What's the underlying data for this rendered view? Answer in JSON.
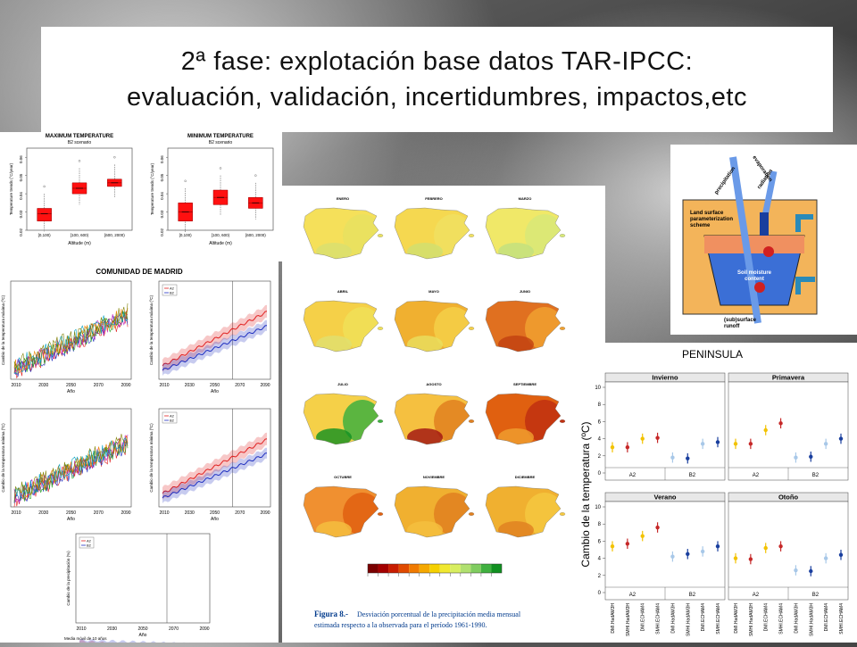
{
  "title": {
    "line1": "2ª fase: explotación base datos TAR-IPCC:",
    "line2": "evaluación, validación, incertidumbres, impactos,etc"
  },
  "boxplots": {
    "panels": [
      {
        "title": "MAXIMUM TEMPERATURE",
        "subtitle": "B2 scenario",
        "ylabel": "Temperature trends (°C/year)",
        "xlabel": "Altitude (m)",
        "categories": [
          "[0,100)",
          "[100, 600)",
          "[600, 2000)"
        ],
        "boxes": [
          {
            "q1": 0.025,
            "median": 0.029,
            "q3": 0.032
          },
          {
            "q1": 0.04,
            "median": 0.043,
            "q3": 0.046
          },
          {
            "q1": 0.044,
            "median": 0.046,
            "q3": 0.048
          }
        ]
      },
      {
        "title": "MINIMUM TEMPERATURE",
        "subtitle": "B2 scenario",
        "ylabel": "Temperature trends (°C/year)",
        "xlabel": "Altitude (m)",
        "categories": [
          "[0,100)",
          "[100, 600)",
          "[600, 2000)"
        ],
        "boxes": [
          {
            "q1": 0.025,
            "median": 0.03,
            "q3": 0.035
          },
          {
            "q1": 0.034,
            "median": 0.038,
            "q3": 0.042
          },
          {
            "q1": 0.032,
            "median": 0.035,
            "q3": 0.038
          }
        ]
      }
    ],
    "y_ticks": [
      "0.02",
      "0.03",
      "0.04",
      "0.05",
      "0.06"
    ]
  },
  "madrid": {
    "title": "COMUNIDAD DE MADRID",
    "ylabel_max": "Cambio de la temperatura máxima (ºC)",
    "ylabel_min": "Cambio de la temperatura mínima (ºC)",
    "ylabel_precip": "Cambio de la precipitación (%)",
    "xlabel": "Año",
    "x_ticks": [
      "2010",
      "2030",
      "2050",
      "2070",
      "2090"
    ],
    "legend": [
      "A2",
      "B2"
    ],
    "footer": "Media móvil de 10 años"
  },
  "maps": {
    "months": [
      "ENERO",
      "FEBRERO",
      "MARZO",
      "ABRIL",
      "MAYO",
      "JUNIO",
      "JULIO",
      "AGOSTO",
      "SEPTIEMBRE",
      "OCTUBRE",
      "NOVIEMBRE",
      "DICIEMBRE"
    ],
    "colorbar_colors": [
      "#7a0000",
      "#a30000",
      "#c81c00",
      "#e04a00",
      "#f07a00",
      "#f5a800",
      "#f5d000",
      "#f0e830",
      "#d8ee60",
      "#b0e070",
      "#80cc60",
      "#40b040",
      "#109020"
    ],
    "caption_label": "Figura 8.-",
    "caption_text1": "Desviación porcentual de la precipitación media mensual",
    "caption_text2": "estimada respecto a la observada para el período 1961-1990."
  },
  "schematic": {
    "precipitation": "precipitation",
    "radiation": "radiation",
    "evaporation": "evaporation",
    "scheme": "Land surface parameterization scheme",
    "soil": "Soil moisture content",
    "runoff": "(sub)surface runoff"
  },
  "peninsula": {
    "title": "PENINSULA",
    "ylabel": "Cambio de la temperatura (ºC)",
    "y_ticks": [
      "0",
      "2",
      "4",
      "6",
      "8",
      "10"
    ],
    "models": [
      "DMI.HadAM3H",
      "SMHI.HadAM3H",
      "DMI.ECHAM4",
      "SMHI.ECHAM4"
    ],
    "scenarios": [
      "A2",
      "B2"
    ],
    "seasons": [
      {
        "name": "Invierno",
        "values": [
          3.0,
          3.0,
          4.0,
          4.1,
          1.8,
          1.7,
          3.4,
          3.6
        ]
      },
      {
        "name": "Primavera",
        "values": [
          3.4,
          3.4,
          5.0,
          5.8,
          1.8,
          1.9,
          3.4,
          4.0
        ]
      },
      {
        "name": "Verano",
        "values": [
          5.4,
          5.7,
          6.6,
          7.6,
          4.2,
          4.5,
          4.8,
          5.4
        ]
      },
      {
        "name": "Otoño",
        "values": [
          4.0,
          3.9,
          5.2,
          5.4,
          2.6,
          2.5,
          4.0,
          4.4
        ]
      }
    ],
    "colors": [
      "#f2c200",
      "#c62828",
      "#f2c200",
      "#c62828",
      "#a8c8e8",
      "#1a3f9e",
      "#a8c8e8",
      "#1a3f9e"
    ]
  }
}
